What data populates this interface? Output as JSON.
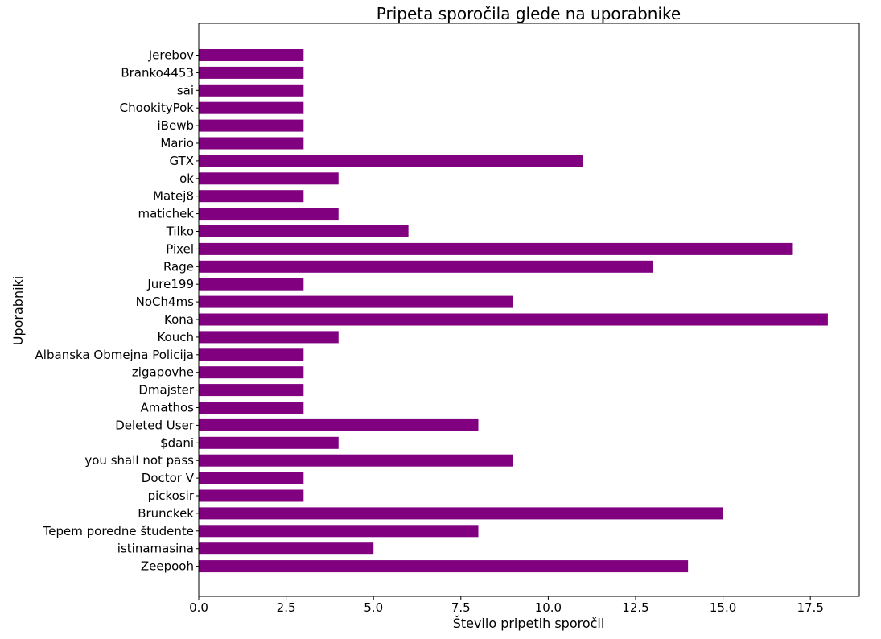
{
  "chart_data": {
    "type": "bar",
    "orientation": "horizontal",
    "title": "Pripeta sporočila glede na uporabnike",
    "xlabel": "Število pripetih sporočil",
    "ylabel": "Uporabniki",
    "bar_color": "#800080",
    "xlim": [
      0,
      18.9
    ],
    "xticks": [
      "0.0",
      "2.5",
      "5.0",
      "7.5",
      "10.0",
      "12.5",
      "15.0",
      "17.5"
    ],
    "grid": false,
    "categories": [
      "Jerebov",
      "Branko4453",
      "sai",
      "ChookityPok",
      "iBewb",
      "Mario",
      "GTX",
      "ok",
      "Matej8",
      "matichek",
      "Tilko",
      "Pixel",
      "Rage",
      "Jure199",
      "NoCh4ms",
      "Kona",
      "Kouch",
      "Albanska Obmejna Policija",
      "zigapovhe",
      "Dmajster",
      "Amathos",
      "Deleted User",
      "$dani",
      "you shall not pass",
      "Doctor V",
      "pickosir",
      "Brunckek",
      "Tepem poredne študente",
      "istinamasina",
      "Zeepooh"
    ],
    "values": [
      3,
      3,
      3,
      3,
      3,
      3,
      11,
      4,
      3,
      4,
      6,
      17,
      13,
      3,
      9,
      18,
      4,
      3,
      3,
      3,
      3,
      8,
      4,
      9,
      3,
      3,
      15,
      8,
      5,
      14
    ]
  }
}
